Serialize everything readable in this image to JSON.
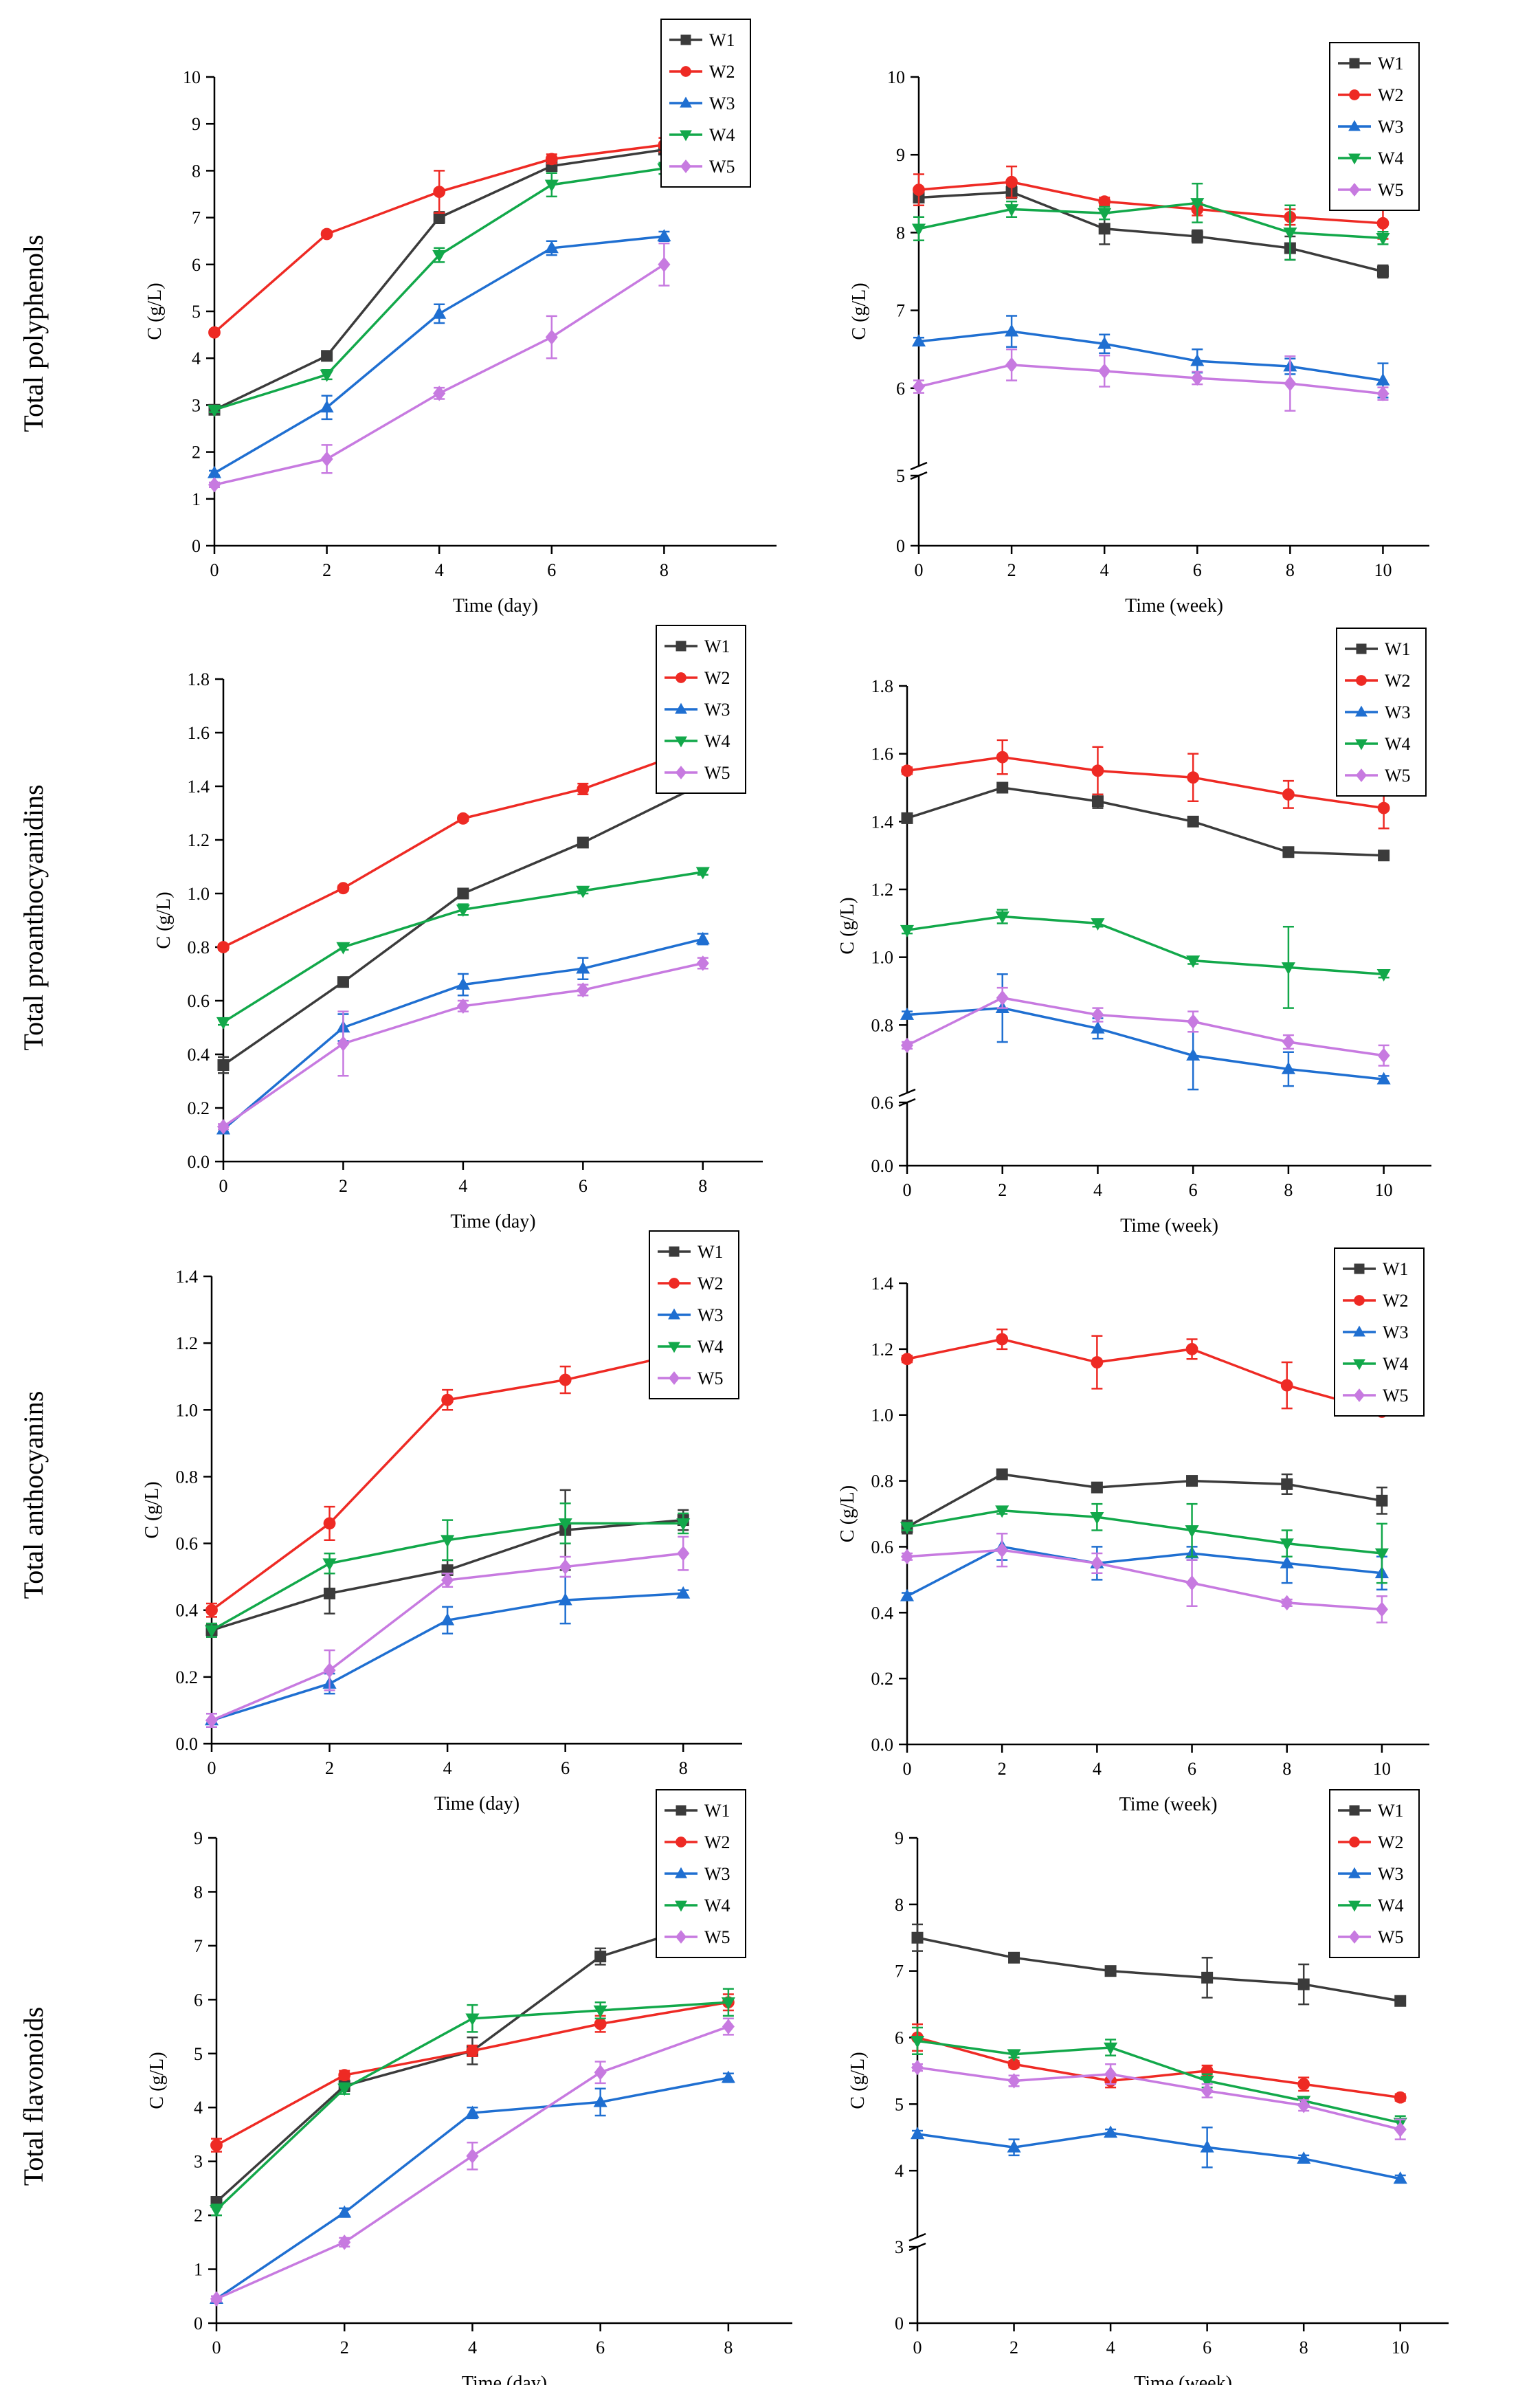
{
  "figure": {
    "rows": [
      {
        "label": "Total polyphenols"
      },
      {
        "label": "Total proanthocyanidins"
      },
      {
        "label": "Total anthocyanins"
      },
      {
        "label": "Total flavonoids"
      }
    ]
  },
  "colors": {
    "W1": "#3b3b3b",
    "W2": "#ee2a24",
    "W3": "#1f6fd1",
    "W4": "#12a84a",
    "W5": "#c77ae0"
  },
  "chart_data": [
    {
      "id": "poly-day",
      "type": "line",
      "row": "Total polyphenols",
      "xlabel": "Time (day)",
      "ylabel": "C (g/L)",
      "x": [
        0,
        2,
        4,
        6,
        8
      ],
      "xlim": [
        0,
        10
      ],
      "ylim": [
        0,
        10
      ],
      "xticks": [
        "0",
        "2",
        "4",
        "6",
        "8"
      ],
      "yticks": [
        "0",
        "1",
        "2",
        "3",
        "4",
        "5",
        "6",
        "7",
        "8",
        "9",
        "10"
      ],
      "ytick_values": [
        0,
        1,
        2,
        3,
        4,
        5,
        6,
        7,
        8,
        9,
        10
      ],
      "legend": "top-right",
      "series": [
        {
          "name": "W1",
          "values": [
            2.9,
            4.05,
            7.0,
            8.1,
            8.45
          ],
          "errors": [
            0.05,
            0.08,
            0.12,
            0.1,
            0.1
          ]
        },
        {
          "name": "W2",
          "values": [
            4.55,
            6.65,
            7.55,
            8.25,
            8.55
          ],
          "errors": [
            0.05,
            0.05,
            0.45,
            0.1,
            0.15
          ]
        },
        {
          "name": "W3",
          "values": [
            1.55,
            2.95,
            4.95,
            6.35,
            6.6
          ],
          "errors": [
            0.05,
            0.25,
            0.2,
            0.15,
            0.1
          ]
        },
        {
          "name": "W4",
          "values": [
            2.9,
            3.65,
            6.2,
            7.7,
            8.05
          ],
          "errors": [
            0.05,
            0.1,
            0.15,
            0.25,
            0.12
          ]
        },
        {
          "name": "W5",
          "values": [
            1.3,
            1.85,
            3.25,
            4.45,
            6.0
          ],
          "errors": [
            0.05,
            0.3,
            0.12,
            0.45,
            0.45
          ]
        }
      ]
    },
    {
      "id": "poly-week",
      "type": "line",
      "row": "Total polyphenols",
      "xlabel": "Time (week)",
      "ylabel": "C (g/L)",
      "x": [
        0,
        2,
        4,
        6,
        8,
        10
      ],
      "xlim": [
        0,
        11
      ],
      "broken_y": true,
      "ylim_lower": [
        0,
        5
      ],
      "ylim_upper": [
        5,
        10
      ],
      "xticks": [
        "0",
        "2",
        "4",
        "6",
        "8",
        "10"
      ],
      "yticks": [
        "0",
        "5",
        "6",
        "7",
        "8",
        "9",
        "10"
      ],
      "ytick_values": [
        0,
        5,
        6,
        7,
        8,
        9,
        10
      ],
      "legend": "top-right",
      "series": [
        {
          "name": "W1",
          "values": [
            8.45,
            8.52,
            8.05,
            7.95,
            7.8,
            7.5
          ],
          "errors": [
            0.05,
            0.08,
            0.2,
            0.08,
            0.15,
            0.08
          ]
        },
        {
          "name": "W2",
          "values": [
            8.55,
            8.65,
            8.4,
            8.3,
            8.2,
            8.12
          ],
          "errors": [
            0.2,
            0.2,
            0.05,
            0.08,
            0.1,
            0.2
          ]
        },
        {
          "name": "W3",
          "values": [
            6.6,
            6.73,
            6.57,
            6.35,
            6.28,
            6.1
          ],
          "errors": [
            0.05,
            0.2,
            0.12,
            0.15,
            0.1,
            0.22
          ]
        },
        {
          "name": "W4",
          "values": [
            8.05,
            8.3,
            8.25,
            8.38,
            8.0,
            7.93
          ],
          "errors": [
            0.15,
            0.1,
            0.08,
            0.25,
            0.35,
            0.08
          ]
        },
        {
          "name": "W5",
          "values": [
            6.02,
            6.3,
            6.22,
            6.13,
            6.06,
            5.93
          ],
          "errors": [
            0.08,
            0.2,
            0.2,
            0.08,
            0.35,
            0.08
          ]
        }
      ]
    },
    {
      "id": "proan-day",
      "type": "line",
      "row": "Total proanthocyanidins",
      "xlabel": "Time (day)",
      "ylabel": "C (g/L)",
      "x": [
        0,
        2,
        4,
        6,
        8
      ],
      "xlim": [
        0,
        9
      ],
      "ylim": [
        0,
        1.8
      ],
      "xticks": [
        "0",
        "2",
        "4",
        "6",
        "8"
      ],
      "yticks": [
        "0.0",
        "0.2",
        "0.4",
        "0.6",
        "0.8",
        "1.0",
        "1.2",
        "1.4",
        "1.6",
        "1.8"
      ],
      "ytick_values": [
        0,
        0.2,
        0.4,
        0.6,
        0.8,
        1.0,
        1.2,
        1.4,
        1.6,
        1.8
      ],
      "legend": "top-right",
      "series": [
        {
          "name": "W1",
          "values": [
            0.36,
            0.67,
            1.0,
            1.19,
            1.41
          ],
          "errors": [
            0.03,
            0.01,
            0.01,
            0.01,
            0.01
          ]
        },
        {
          "name": "W2",
          "values": [
            0.8,
            1.02,
            1.28,
            1.39,
            1.55
          ],
          "errors": [
            0.01,
            0.01,
            0.01,
            0.02,
            0.02
          ]
        },
        {
          "name": "W3",
          "values": [
            0.12,
            0.5,
            0.66,
            0.72,
            0.83
          ],
          "errors": [
            0.01,
            0.05,
            0.04,
            0.04,
            0.02
          ]
        },
        {
          "name": "W4",
          "values": [
            0.52,
            0.8,
            0.94,
            1.01,
            1.08
          ],
          "errors": [
            0.01,
            0.01,
            0.02,
            0.01,
            0.01
          ]
        },
        {
          "name": "W5",
          "values": [
            0.13,
            0.44,
            0.58,
            0.64,
            0.74
          ],
          "errors": [
            0.01,
            0.12,
            0.02,
            0.02,
            0.02
          ]
        }
      ]
    },
    {
      "id": "proan-week",
      "type": "line",
      "row": "Total proanthocyanidins",
      "xlabel": "Time (week)",
      "ylabel": "C (g/L)",
      "x": [
        0,
        2,
        4,
        6,
        8,
        10
      ],
      "xlim": [
        0,
        11
      ],
      "broken_y": true,
      "ylim_lower": [
        0,
        0.6
      ],
      "ylim_upper": [
        0.6,
        1.8
      ],
      "xticks": [
        "0",
        "2",
        "4",
        "6",
        "8",
        "10"
      ],
      "yticks": [
        "0.0",
        "0.6",
        "0.8",
        "1.0",
        "1.2",
        "1.4",
        "1.6",
        "1.8"
      ],
      "ytick_values": [
        0,
        0.6,
        0.8,
        1.0,
        1.2,
        1.4,
        1.6,
        1.8
      ],
      "legend": "top-right",
      "series": [
        {
          "name": "W1",
          "values": [
            1.41,
            1.5,
            1.46,
            1.4,
            1.31,
            1.3
          ],
          "errors": [
            0.01,
            0.01,
            0.02,
            0.01,
            0.01,
            0.01
          ]
        },
        {
          "name": "W2",
          "values": [
            1.55,
            1.59,
            1.55,
            1.53,
            1.48,
            1.44
          ],
          "errors": [
            0.01,
            0.05,
            0.07,
            0.07,
            0.04,
            0.06
          ]
        },
        {
          "name": "W3",
          "values": [
            0.83,
            0.85,
            0.79,
            0.71,
            0.67,
            0.64
          ],
          "errors": [
            0.01,
            0.1,
            0.03,
            0.1,
            0.05,
            0.01
          ]
        },
        {
          "name": "W4",
          "values": [
            1.08,
            1.12,
            1.1,
            0.99,
            0.97,
            0.95
          ],
          "errors": [
            0.01,
            0.02,
            0.01,
            0.01,
            0.12,
            0.01
          ]
        },
        {
          "name": "W5",
          "values": [
            0.74,
            0.88,
            0.83,
            0.81,
            0.75,
            0.71
          ],
          "errors": [
            0.01,
            0.03,
            0.02,
            0.03,
            0.02,
            0.03
          ]
        }
      ]
    },
    {
      "id": "antho-day",
      "type": "line",
      "row": "Total anthocyanins",
      "xlabel": "Time (day)",
      "ylabel": "C (g/L)",
      "x": [
        0,
        2,
        4,
        6,
        8
      ],
      "xlim": [
        0,
        9
      ],
      "ylim": [
        0,
        1.4
      ],
      "xticks": [
        "0",
        "2",
        "4",
        "6",
        "8"
      ],
      "yticks": [
        "0.0",
        "0.2",
        "0.4",
        "0.6",
        "0.8",
        "1.0",
        "1.2",
        "1.4"
      ],
      "ytick_values": [
        0,
        0.2,
        0.4,
        0.6,
        0.8,
        1.0,
        1.2,
        1.4
      ],
      "legend": "top-right",
      "series": [
        {
          "name": "W1",
          "values": [
            0.34,
            0.45,
            0.52,
            0.64,
            0.67
          ],
          "errors": [
            0.02,
            0.06,
            0.03,
            0.12,
            0.03
          ]
        },
        {
          "name": "W2",
          "values": [
            0.4,
            0.66,
            1.03,
            1.09,
            1.17
          ],
          "errors": [
            0.02,
            0.05,
            0.03,
            0.04,
            0.03
          ]
        },
        {
          "name": "W3",
          "values": [
            0.07,
            0.18,
            0.37,
            0.43,
            0.45
          ],
          "errors": [
            0.02,
            0.03,
            0.04,
            0.07,
            0.01
          ]
        },
        {
          "name": "W4",
          "values": [
            0.34,
            0.54,
            0.61,
            0.66,
            0.66
          ],
          "errors": [
            0.02,
            0.03,
            0.06,
            0.06,
            0.03
          ]
        },
        {
          "name": "W5",
          "values": [
            0.07,
            0.22,
            0.49,
            0.53,
            0.57
          ],
          "errors": [
            0.02,
            0.06,
            0.02,
            0.03,
            0.05
          ]
        }
      ]
    },
    {
      "id": "antho-week",
      "type": "line",
      "row": "Total anthocyanins",
      "xlabel": "Time (week)",
      "ylabel": "C (g/L)",
      "x": [
        0,
        2,
        4,
        6,
        8,
        10
      ],
      "xlim": [
        0,
        11
      ],
      "ylim": [
        0,
        1.4
      ],
      "xticks": [
        "0",
        "2",
        "4",
        "6",
        "8",
        "10"
      ],
      "yticks": [
        "0.0",
        "0.2",
        "0.4",
        "0.6",
        "0.8",
        "1.0",
        "1.2",
        "1.4"
      ],
      "ytick_values": [
        0,
        0.2,
        0.4,
        0.6,
        0.8,
        1.0,
        1.2,
        1.4
      ],
      "legend": "top-right",
      "series": [
        {
          "name": "W1",
          "values": [
            0.66,
            0.82,
            0.78,
            0.8,
            0.79,
            0.74
          ],
          "errors": [
            0.02,
            0.01,
            0.01,
            0.01,
            0.03,
            0.04
          ]
        },
        {
          "name": "W2",
          "values": [
            1.17,
            1.23,
            1.16,
            1.2,
            1.09,
            1.01
          ],
          "errors": [
            0.01,
            0.03,
            0.08,
            0.03,
            0.07,
            0.01
          ]
        },
        {
          "name": "W3",
          "values": [
            0.45,
            0.6,
            0.55,
            0.58,
            0.55,
            0.52
          ],
          "errors": [
            0.01,
            0.04,
            0.05,
            0.02,
            0.06,
            0.05
          ]
        },
        {
          "name": "W4",
          "values": [
            0.66,
            0.71,
            0.69,
            0.65,
            0.61,
            0.58
          ],
          "errors": [
            0.01,
            0.01,
            0.04,
            0.08,
            0.04,
            0.09
          ]
        },
        {
          "name": "W5",
          "values": [
            0.57,
            0.59,
            0.55,
            0.49,
            0.43,
            0.41
          ],
          "errors": [
            0.01,
            0.05,
            0.03,
            0.07,
            0.01,
            0.04
          ]
        }
      ]
    },
    {
      "id": "flav-day",
      "type": "line",
      "row": "Total flavonoids",
      "xlabel": "Time (day)",
      "ylabel": "C (g/L)",
      "x": [
        0,
        2,
        4,
        6,
        8
      ],
      "xlim": [
        0,
        9
      ],
      "ylim": [
        0,
        9
      ],
      "xticks": [
        "0",
        "2",
        "4",
        "6",
        "8"
      ],
      "yticks": [
        "0",
        "1",
        "2",
        "3",
        "4",
        "5",
        "6",
        "7",
        "8",
        "9"
      ],
      "ytick_values": [
        0,
        1,
        2,
        3,
        4,
        5,
        6,
        7,
        8,
        9
      ],
      "legend": "top-right",
      "series": [
        {
          "name": "W1",
          "values": [
            2.25,
            4.4,
            5.05,
            6.8,
            7.55
          ],
          "errors": [
            0.05,
            0.1,
            0.25,
            0.15,
            0.08
          ]
        },
        {
          "name": "W2",
          "values": [
            3.3,
            4.6,
            5.05,
            5.55,
            5.95
          ],
          "errors": [
            0.12,
            0.08,
            0.1,
            0.15,
            0.15
          ]
        },
        {
          "name": "W3",
          "values": [
            0.45,
            2.05,
            3.9,
            4.1,
            4.55
          ],
          "errors": [
            0.05,
            0.08,
            0.1,
            0.25,
            0.08
          ]
        },
        {
          "name": "W4",
          "values": [
            2.1,
            4.35,
            5.65,
            5.8,
            5.95
          ],
          "errors": [
            0.1,
            0.1,
            0.25,
            0.15,
            0.25
          ]
        },
        {
          "name": "W5",
          "values": [
            0.45,
            1.5,
            3.1,
            4.65,
            5.5
          ],
          "errors": [
            0.05,
            0.08,
            0.25,
            0.2,
            0.15
          ]
        }
      ]
    },
    {
      "id": "flav-week",
      "type": "line",
      "row": "Total flavonoids",
      "xlabel": "Time (week)",
      "ylabel": "C (g/L)",
      "x": [
        0,
        2,
        4,
        6,
        8,
        10
      ],
      "xlim": [
        0,
        11
      ],
      "broken_y": true,
      "ylim_lower": [
        0,
        3
      ],
      "ylim_upper": [
        3,
        9
      ],
      "xticks": [
        "0",
        "2",
        "4",
        "6",
        "8",
        "10"
      ],
      "yticks": [
        "0",
        "3",
        "4",
        "5",
        "6",
        "7",
        "8",
        "9"
      ],
      "ytick_values": [
        0,
        3,
        4,
        5,
        6,
        7,
        8,
        9
      ],
      "legend": "top-right",
      "series": [
        {
          "name": "W1",
          "values": [
            7.5,
            7.2,
            7.0,
            6.9,
            6.8,
            6.55
          ],
          "errors": [
            0.2,
            0.05,
            0.05,
            0.3,
            0.3,
            0.05
          ]
        },
        {
          "name": "W2",
          "values": [
            6.0,
            5.6,
            5.35,
            5.5,
            5.3,
            5.1
          ],
          "errors": [
            0.2,
            0.05,
            0.1,
            0.08,
            0.1,
            0.05
          ]
        },
        {
          "name": "W3",
          "values": [
            4.55,
            4.35,
            4.57,
            4.35,
            4.18,
            3.88
          ],
          "errors": [
            0.05,
            0.12,
            0.05,
            0.3,
            0.05,
            0.05
          ]
        },
        {
          "name": "W4",
          "values": [
            5.95,
            5.75,
            5.85,
            5.35,
            5.05,
            4.72
          ],
          "errors": [
            0.2,
            0.05,
            0.12,
            0.1,
            0.05,
            0.1
          ]
        },
        {
          "name": "W5",
          "values": [
            5.55,
            5.35,
            5.45,
            5.2,
            4.98,
            4.62
          ],
          "errors": [
            0.05,
            0.08,
            0.15,
            0.1,
            0.08,
            0.15
          ]
        }
      ]
    }
  ]
}
